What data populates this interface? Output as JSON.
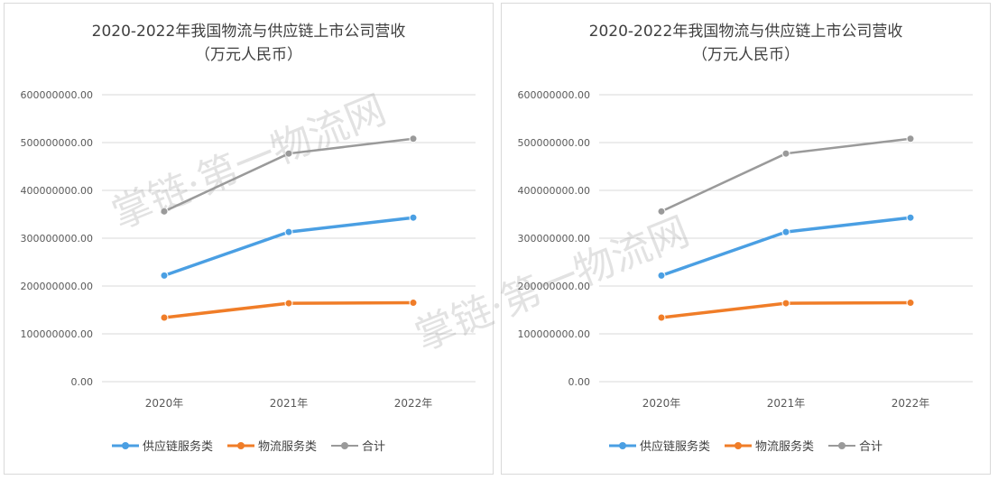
{
  "colors": {
    "supply_chain": "#4a9fe3",
    "logistics": "#f07d28",
    "total": "#9a9a9a",
    "grid": "#d9d9d9",
    "axis_text": "#595959"
  },
  "watermark_text": "掌链·第一物流网",
  "chart_data": [
    {
      "type": "line",
      "title": [
        "2020-2022年我国物流与供应链上市公司营收",
        "（万元人民币）"
      ],
      "categories": [
        "2020年",
        "2021年",
        "2022年"
      ],
      "y_tick_labels": [
        "0.00",
        "100000000.00",
        "200000000.00",
        "300000000.00",
        "400000000.00",
        "500000000.00",
        "600000000.00"
      ],
      "ylim": [
        0,
        600000000
      ],
      "grid": true,
      "legend_position": "bottom",
      "series": [
        {
          "name": "供应链服务类",
          "color_key": "supply_chain",
          "values": [
            222000000,
            313000000,
            343000000
          ]
        },
        {
          "name": "物流服务类",
          "color_key": "logistics",
          "values": [
            134000000,
            164000000,
            165000000
          ]
        },
        {
          "name": "合计",
          "color_key": "total",
          "values": [
            356000000,
            477000000,
            508000000
          ]
        }
      ]
    },
    {
      "type": "line",
      "title": [
        "2020-2022年我国物流与供应链上市公司营收",
        "（万元人民币）"
      ],
      "categories": [
        "2020年",
        "2021年",
        "2022年"
      ],
      "y_tick_labels": [
        "0.00",
        "100000000.00",
        "200000000.00",
        "300000000.00",
        "400000000.00",
        "500000000.00",
        "600000000.00"
      ],
      "ylim": [
        0,
        600000000
      ],
      "grid": true,
      "legend_position": "bottom",
      "series": [
        {
          "name": "供应链服务类",
          "color_key": "supply_chain",
          "values": [
            222000000,
            313000000,
            343000000
          ]
        },
        {
          "name": "物流服务类",
          "color_key": "logistics",
          "values": [
            134000000,
            164000000,
            165000000
          ]
        },
        {
          "name": "合计",
          "color_key": "total",
          "values": [
            356000000,
            477000000,
            508000000
          ]
        }
      ]
    }
  ]
}
